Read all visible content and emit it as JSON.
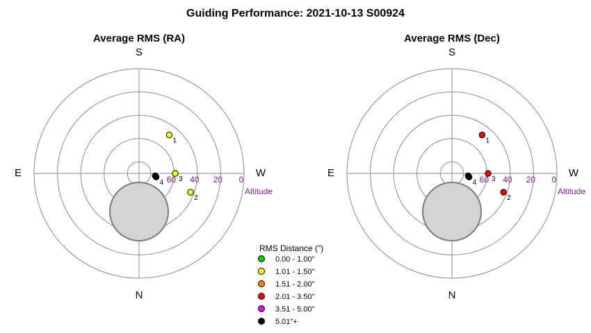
{
  "title": "Guiding Performance: 2021-10-13 S00924",
  "chart_data": [
    {
      "type": "scatter",
      "projection": "polar-altitude",
      "title": "Average RMS (RA)",
      "directions": {
        "top": "S",
        "bottom": "N",
        "left": "E",
        "right": "W"
      },
      "axis_label": "Altitude",
      "altitude_ticks": [
        "0",
        "20",
        "40",
        "60"
      ],
      "rings_altitude": [
        0,
        20,
        40,
        60,
        80
      ],
      "points": [
        {
          "label": "1",
          "alt": 48,
          "az": 322,
          "color": "#ffff00"
        },
        {
          "label": "2",
          "alt": 43,
          "az": 250,
          "color": "#ffff00"
        },
        {
          "label": "3",
          "alt": 59,
          "az": 270,
          "color": "#ffff00"
        },
        {
          "label": "4",
          "alt": 75,
          "az": 258,
          "color": "#000000"
        },
        {
          "label": "",
          "alt": 76,
          "az": 262,
          "color": "#000000"
        }
      ]
    },
    {
      "type": "scatter",
      "projection": "polar-altitude",
      "title": "Average RMS (Dec)",
      "directions": {
        "top": "S",
        "bottom": "N",
        "left": "E",
        "right": "W"
      },
      "axis_label": "Altitude",
      "altitude_ticks": [
        "0",
        "20",
        "40",
        "60"
      ],
      "rings_altitude": [
        0,
        20,
        40,
        60,
        80
      ],
      "points": [
        {
          "label": "1",
          "alt": 48,
          "az": 322,
          "color": "#ee0000"
        },
        {
          "label": "2",
          "alt": 43,
          "az": 250,
          "color": "#ee0000"
        },
        {
          "label": "3",
          "alt": 59,
          "az": 270,
          "color": "#ee0000"
        },
        {
          "label": "4",
          "alt": 75,
          "az": 258,
          "color": "#000000"
        },
        {
          "label": "",
          "alt": 76,
          "az": 262,
          "color": "#000000"
        }
      ]
    }
  ],
  "legend": {
    "title": "RMS Distance (\")",
    "items": [
      {
        "label": "0.00 - 1.00\"",
        "color": "#00cc00"
      },
      {
        "label": "1.01 - 1.50\"",
        "color": "#ffff00"
      },
      {
        "label": "1.51 - 2.00\"",
        "color": "#ee8800"
      },
      {
        "label": "2.01 - 3.50\"",
        "color": "#ee0000"
      },
      {
        "label": "3.51 - 5.00\"",
        "color": "#ee00ee"
      },
      {
        "label": "5.01\"+",
        "color": "#000000"
      }
    ]
  },
  "colors": {
    "grid": "#888888",
    "altitude_text": "#7a1f8c",
    "shade_fill": "#d3d3d3",
    "shade_stroke": "#7a7a7a"
  }
}
